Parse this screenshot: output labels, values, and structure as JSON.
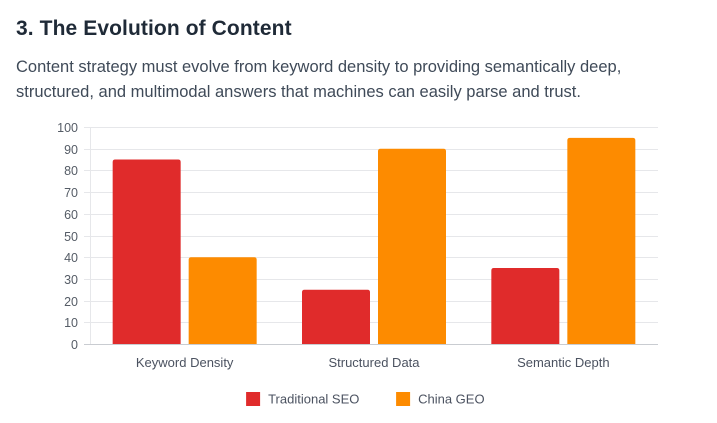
{
  "section": {
    "heading": "3. The Evolution of Content",
    "description": "Content strategy must evolve from keyword density to providing semantically deep, structured, and multimodal answers that machines can easily parse and trust."
  },
  "chart_data": {
    "type": "bar",
    "categories": [
      "Keyword Density",
      "Structured Data",
      "Semantic Depth"
    ],
    "series": [
      {
        "name": "Traditional SEO",
        "values": [
          85,
          25,
          35
        ],
        "color": "#e02b2b"
      },
      {
        "name": "China GEO",
        "values": [
          40,
          90,
          95
        ],
        "color": "#fd8b00"
      }
    ],
    "ylim": [
      0,
      100
    ],
    "yticks": [
      0,
      10,
      20,
      30,
      40,
      50,
      60,
      70,
      80,
      90,
      100
    ],
    "grid": true,
    "legend": "bottom-center"
  }
}
